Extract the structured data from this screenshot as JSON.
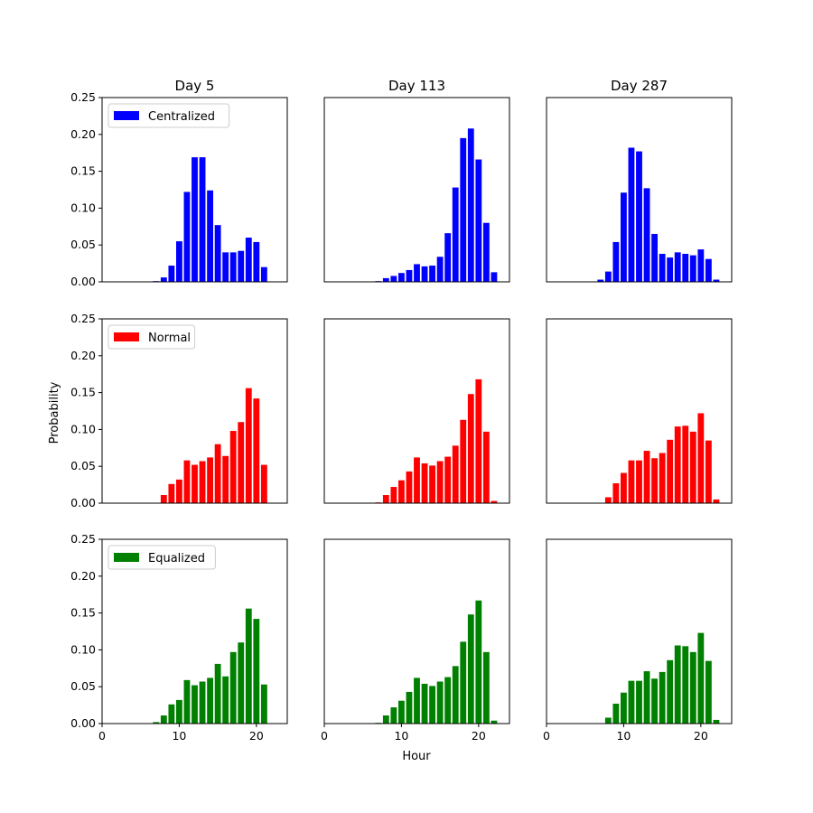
{
  "figure": {
    "xlabel": "Hour",
    "ylabel": "Probability"
  },
  "chart_data": {
    "type": "bar",
    "rows": [
      "Centralized",
      "Normal",
      "Equalized"
    ],
    "cols": [
      "Day 5",
      "Day 113",
      "Day 287"
    ],
    "colors": {
      "Centralized": "#0000ff",
      "Normal": "#ff0000",
      "Equalized": "#008000"
    },
    "xlim": [
      0,
      24
    ],
    "ylim": [
      0,
      0.25
    ],
    "xticks": [
      0,
      10,
      20
    ],
    "yticks": [
      "0.00",
      "0.05",
      "0.10",
      "0.15",
      "0.20",
      "0.25"
    ],
    "grid": false,
    "legend_position": "upper-left (first column of each row)",
    "panels": [
      {
        "row": "Centralized",
        "col": "Day 5",
        "x": [
          6,
          7,
          8,
          9,
          10,
          11,
          12,
          13,
          14,
          15,
          16,
          17,
          18,
          19,
          20,
          21
        ],
        "values": [
          0,
          0.001,
          0.006,
          0.022,
          0.055,
          0.122,
          0.169,
          0.169,
          0.124,
          0.077,
          0.04,
          0.04,
          0.042,
          0.06,
          0.054,
          0.02
        ]
      },
      {
        "row": "Centralized",
        "col": "Day 113",
        "x": [
          6,
          7,
          8,
          9,
          10,
          11,
          12,
          13,
          14,
          15,
          16,
          17,
          18,
          19,
          20,
          21,
          22
        ],
        "values": [
          0,
          0.001,
          0.005,
          0.008,
          0.012,
          0.016,
          0.024,
          0.021,
          0.022,
          0.034,
          0.066,
          0.128,
          0.195,
          0.208,
          0.166,
          0.08,
          0.013
        ]
      },
      {
        "row": "Centralized",
        "col": "Day 287",
        "x": [
          6,
          7,
          8,
          9,
          10,
          11,
          12,
          13,
          14,
          15,
          16,
          17,
          18,
          19,
          20,
          21,
          22
        ],
        "values": [
          0,
          0.003,
          0.014,
          0.054,
          0.121,
          0.182,
          0.177,
          0.127,
          0.065,
          0.038,
          0.033,
          0.04,
          0.038,
          0.036,
          0.044,
          0.031,
          0.003
        ]
      },
      {
        "row": "Normal",
        "col": "Day 5",
        "x": [
          8,
          9,
          10,
          11,
          12,
          13,
          14,
          15,
          16,
          17,
          18,
          19,
          20,
          21
        ],
        "values": [
          0.011,
          0.026,
          0.032,
          0.058,
          0.052,
          0.057,
          0.062,
          0.08,
          0.064,
          0.098,
          0.11,
          0.156,
          0.142,
          0.052
        ]
      },
      {
        "row": "Normal",
        "col": "Day 113",
        "x": [
          7,
          8,
          9,
          10,
          11,
          12,
          13,
          14,
          15,
          16,
          17,
          18,
          19,
          20,
          21,
          22
        ],
        "values": [
          0.001,
          0.011,
          0.022,
          0.031,
          0.043,
          0.062,
          0.054,
          0.051,
          0.057,
          0.063,
          0.078,
          0.113,
          0.148,
          0.168,
          0.097,
          0.003
        ]
      },
      {
        "row": "Normal",
        "col": "Day 287",
        "x": [
          8,
          9,
          10,
          11,
          12,
          13,
          14,
          15,
          16,
          17,
          18,
          19,
          20,
          21,
          22
        ],
        "values": [
          0.008,
          0.027,
          0.041,
          0.058,
          0.058,
          0.071,
          0.061,
          0.068,
          0.086,
          0.104,
          0.105,
          0.097,
          0.122,
          0.085,
          0.005
        ]
      },
      {
        "row": "Equalized",
        "col": "Day 5",
        "x": [
          7,
          8,
          9,
          10,
          11,
          12,
          13,
          14,
          15,
          16,
          17,
          18,
          19,
          20,
          21
        ],
        "values": [
          0.002,
          0.011,
          0.026,
          0.032,
          0.059,
          0.052,
          0.057,
          0.062,
          0.081,
          0.064,
          0.097,
          0.11,
          0.156,
          0.142,
          0.053
        ]
      },
      {
        "row": "Equalized",
        "col": "Day 113",
        "x": [
          7,
          8,
          9,
          10,
          11,
          12,
          13,
          14,
          15,
          16,
          17,
          18,
          19,
          20,
          21,
          22
        ],
        "values": [
          0.001,
          0.011,
          0.022,
          0.031,
          0.043,
          0.062,
          0.054,
          0.051,
          0.057,
          0.063,
          0.078,
          0.111,
          0.148,
          0.167,
          0.097,
          0.004
        ]
      },
      {
        "row": "Equalized",
        "col": "Day 287",
        "x": [
          8,
          9,
          10,
          11,
          12,
          13,
          14,
          15,
          16,
          17,
          18,
          19,
          20,
          21,
          22
        ],
        "values": [
          0.008,
          0.027,
          0.042,
          0.058,
          0.058,
          0.071,
          0.061,
          0.07,
          0.086,
          0.106,
          0.105,
          0.097,
          0.123,
          0.085,
          0.005
        ]
      }
    ]
  }
}
